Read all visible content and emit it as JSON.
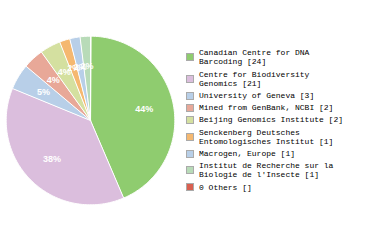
{
  "chart_data": {
    "type": "pie",
    "categories": [
      "Canadian Centre for DNA\nBarcoding [24]",
      "Centre for Biodiversity\nGenomics [21]",
      "University of Geneva [3]",
      "Mined from GenBank, NCBI [2]",
      "Beijing Genomics Institute [2]",
      "Senckenberg Deutsches\nEntomologisches Institut [1]",
      "Macrogen, Europe [1]",
      "Institut de Recherche sur la\nBiologie de l'Insecte [1]",
      "0 Others []"
    ],
    "values": [
      44,
      38,
      5,
      4,
      4,
      2,
      2,
      2,
      0.0018
    ],
    "value_labels": [
      "44%",
      "38%",
      "5%",
      "4%",
      "4%",
      "2%",
      "2%",
      "2%",
      null
    ],
    "colors": [
      "#8fcc6f",
      "#dbbedd",
      "#b8cfe8",
      "#e8a898",
      "#d4e0a0",
      "#f5b870",
      "#b8cfe8",
      "#b8dbb8",
      "#d96050"
    ],
    "data_labels": true,
    "legend": "right"
  }
}
